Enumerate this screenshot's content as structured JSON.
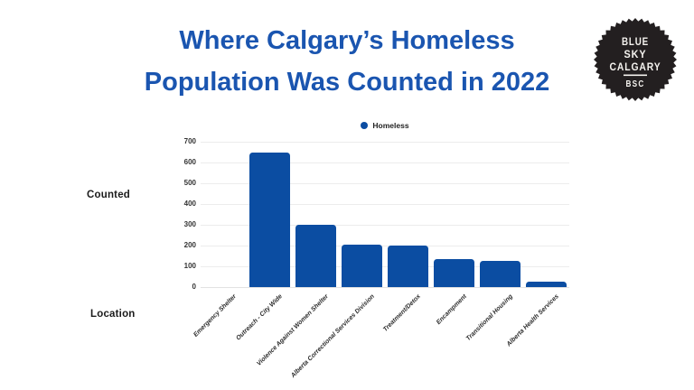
{
  "page": {
    "background": "#ffffff"
  },
  "title": {
    "line1": "Where Calgary’s Homeless",
    "line2": "Population Was Counted in 2022",
    "color": "#1a55b0"
  },
  "logo": {
    "line1": "BLUE",
    "line2": "SKY",
    "line3": "CALGARY",
    "abbr": "BSC",
    "badge_color": "#231f20",
    "text_color": "#f5f3ef"
  },
  "axis_titles": {
    "y": "Counted",
    "x": "Location"
  },
  "legend": {
    "items": [
      {
        "label": "Homeless",
        "color": "#0b4da2"
      }
    ]
  },
  "chart_data": {
    "type": "bar",
    "title": "Where Calgary’s Homeless Population Was Counted in 2022",
    "xlabel": "Location",
    "ylabel": "Counted",
    "legend_entries": [
      "Homeless"
    ],
    "legend_position": "top-center",
    "grid": true,
    "ylim": [
      0,
      700
    ],
    "ytick_interval": 100,
    "yticks": [
      0,
      100,
      200,
      300,
      400,
      500,
      600,
      700
    ],
    "categories": [
      "Emergency Shelter",
      "Outreach - City Wide",
      "Violence Against Women Shelter",
      "Alberta Correctional Services Division",
      "Treatment/Detox",
      "Encampment",
      "Transitional Housing",
      "Alberta Health Services"
    ],
    "values": [
      0,
      650,
      300,
      205,
      200,
      135,
      125,
      25
    ],
    "bar_color": "#0b4da2"
  }
}
